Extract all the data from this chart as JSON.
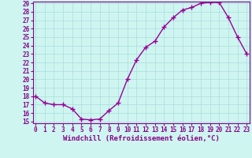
{
  "x": [
    0,
    1,
    2,
    3,
    4,
    5,
    6,
    7,
    8,
    9,
    10,
    11,
    12,
    13,
    14,
    15,
    16,
    17,
    18,
    19,
    20,
    21,
    22,
    23
  ],
  "y": [
    18.0,
    17.2,
    17.0,
    17.0,
    16.5,
    15.3,
    15.2,
    15.3,
    16.3,
    17.2,
    20.0,
    22.3,
    23.8,
    24.5,
    26.2,
    27.3,
    28.2,
    28.5,
    29.0,
    29.1,
    29.1,
    27.3,
    25.0,
    23.0
  ],
  "line_color": "#990099",
  "marker": "+",
  "marker_size": 4,
  "bg_color": "#cef5f0",
  "grid_color": "#aadddd",
  "xlabel": "Windchill (Refroidissement éolien,°C)",
  "ylim_min": 15,
  "ylim_max": 29,
  "xlim_min": 0,
  "xlim_max": 23,
  "yticks": [
    15,
    16,
    17,
    18,
    19,
    20,
    21,
    22,
    23,
    24,
    25,
    26,
    27,
    28,
    29
  ],
  "xticks": [
    0,
    1,
    2,
    3,
    4,
    5,
    6,
    7,
    8,
    9,
    10,
    11,
    12,
    13,
    14,
    15,
    16,
    17,
    18,
    19,
    20,
    21,
    22,
    23
  ],
  "tick_fontsize": 5.5,
  "xlabel_fontsize": 6.5,
  "line_width": 1.0,
  "spine_color": "#880088",
  "tick_color": "#880088",
  "label_color": "#880088"
}
